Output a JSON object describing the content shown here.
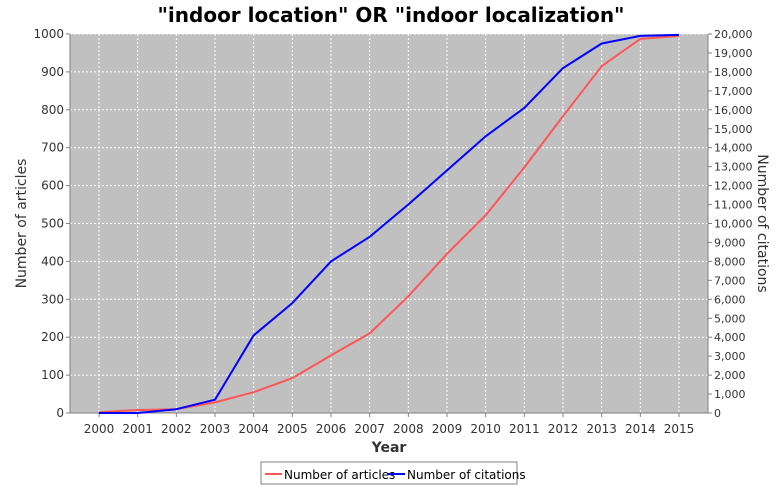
{
  "chart_data": {
    "type": "line",
    "title": "\"indoor location\" OR \"indoor localization\"",
    "xlabel": "Year",
    "ylabel": "Number of articles",
    "y2label": "Number of citations",
    "categories": [
      "2000",
      "2001",
      "2002",
      "2003",
      "2004",
      "2005",
      "2006",
      "2007",
      "2008",
      "2009",
      "2010",
      "2011",
      "2012",
      "2013",
      "2014",
      "2015"
    ],
    "ylim": [
      0,
      1000
    ],
    "y2lim": [
      0,
      20000
    ],
    "yticks": [
      0,
      100,
      200,
      300,
      400,
      500,
      600,
      700,
      800,
      900,
      1000
    ],
    "y2ticks": [
      0,
      1000,
      2000,
      3000,
      4000,
      5000,
      6000,
      7000,
      8000,
      9000,
      10000,
      11000,
      12000,
      13000,
      14000,
      15000,
      16000,
      17000,
      18000,
      19000,
      20000
    ],
    "y2tick_labels": [
      "0",
      "1,000",
      "2,000",
      "3,000",
      "4,000",
      "5,000",
      "6,000",
      "7,000",
      "8,000",
      "9,000",
      "10,000",
      "11,000",
      "12,000",
      "13,000",
      "14,000",
      "15,000",
      "16,000",
      "17,000",
      "18,000",
      "19,000",
      "20,000"
    ],
    "grid": true,
    "legend_position": "bottom",
    "background_color": "#c0c0c0",
    "series": [
      {
        "name": "Number of articles",
        "axis": "left",
        "color": "#ff5555",
        "values": [
          2,
          8,
          10,
          28,
          55,
          92,
          152,
          210,
          308,
          420,
          522,
          648,
          783,
          915,
          987,
          995
        ]
      },
      {
        "name": "Number of citations",
        "axis": "right",
        "color": "#0000ff",
        "values": [
          0,
          0,
          200,
          700,
          4100,
          5800,
          8000,
          9300,
          11000,
          12800,
          14600,
          16100,
          18200,
          19500,
          19900,
          19950
        ]
      }
    ]
  }
}
